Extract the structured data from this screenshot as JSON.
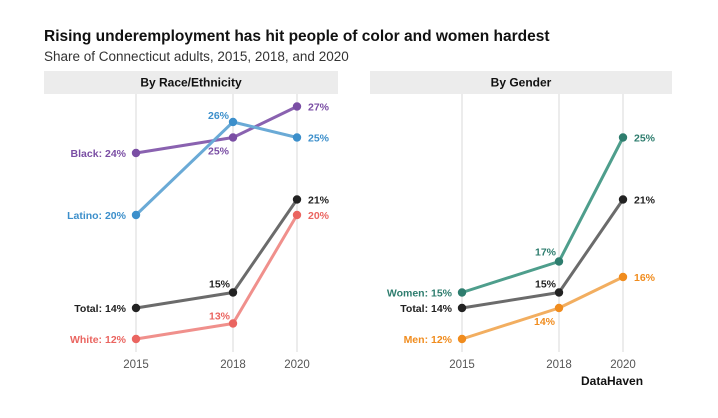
{
  "title": "Rising underemployment has hit people of color and women hardest",
  "subtitle": "Share of Connecticut adults, 2015, 2018, and 2020",
  "source": "DataHaven",
  "chart_data": [
    {
      "type": "line",
      "title": "By Race/Ethnicity",
      "x": [
        2015,
        2018,
        2020
      ],
      "x_tick_labels": [
        "2015",
        "2018",
        "2020"
      ],
      "ylim": [
        11,
        28
      ],
      "grid": "vertical",
      "legend": "direct labels",
      "series": [
        {
          "name": "Black",
          "color": "#8a62b0",
          "values": [
            24,
            25,
            27
          ],
          "labels": [
            "Black: 24%",
            "25%",
            "27%"
          ]
        },
        {
          "name": "Latino",
          "color": "#6aaad6",
          "values": [
            20,
            26,
            25
          ],
          "labels": [
            "Latino: 20%",
            "26%",
            "25%"
          ]
        },
        {
          "name": "Total",
          "color": "#6b6b6b",
          "values": [
            14,
            15,
            21
          ],
          "labels": [
            "Total: 14%",
            "15%",
            "21%"
          ]
        },
        {
          "name": "White",
          "color": "#f0908c",
          "values": [
            12,
            13,
            20
          ],
          "labels": [
            "White: 12%",
            "13%",
            "20%"
          ]
        }
      ]
    },
    {
      "type": "line",
      "title": "By Gender",
      "x": [
        2015,
        2018,
        2020
      ],
      "x_tick_labels": [
        "2015",
        "2018",
        "2020"
      ],
      "ylim": [
        11,
        28
      ],
      "grid": "vertical",
      "legend": "direct labels",
      "series": [
        {
          "name": "Women",
          "color": "#4e9e8c",
          "values": [
            15,
            17,
            25
          ],
          "labels": [
            "Women: 15%",
            "17%",
            "25%"
          ]
        },
        {
          "name": "Total",
          "color": "#6b6b6b",
          "values": [
            14,
            15,
            21
          ],
          "labels": [
            "Total: 14%",
            "15%",
            "21%"
          ]
        },
        {
          "name": "Men",
          "color": "#f2ae60",
          "values": [
            12,
            14,
            16
          ],
          "labels": [
            "Men: 12%",
            "14%",
            "16%"
          ]
        }
      ]
    }
  ],
  "colors": {
    "Black": {
      "line": "#8a62b0",
      "dot": "#7a4ea4",
      "text": "#7a4ea4"
    },
    "Latino": {
      "line": "#6aaad6",
      "dot": "#3c8fcb",
      "text": "#3c8fcb"
    },
    "Total": {
      "line": "#6b6b6b",
      "dot": "#222222",
      "text": "#222222"
    },
    "White": {
      "line": "#f0908c",
      "dot": "#ea6560",
      "text": "#ea6560"
    },
    "Women": {
      "line": "#4e9e8c",
      "dot": "#2e7d6e",
      "text": "#2e7d6e"
    },
    "Men": {
      "line": "#f2ae60",
      "dot": "#f08c1e",
      "text": "#f08c1e"
    },
    "panel_header": "#ececec",
    "grid": "#d9d9d9"
  }
}
